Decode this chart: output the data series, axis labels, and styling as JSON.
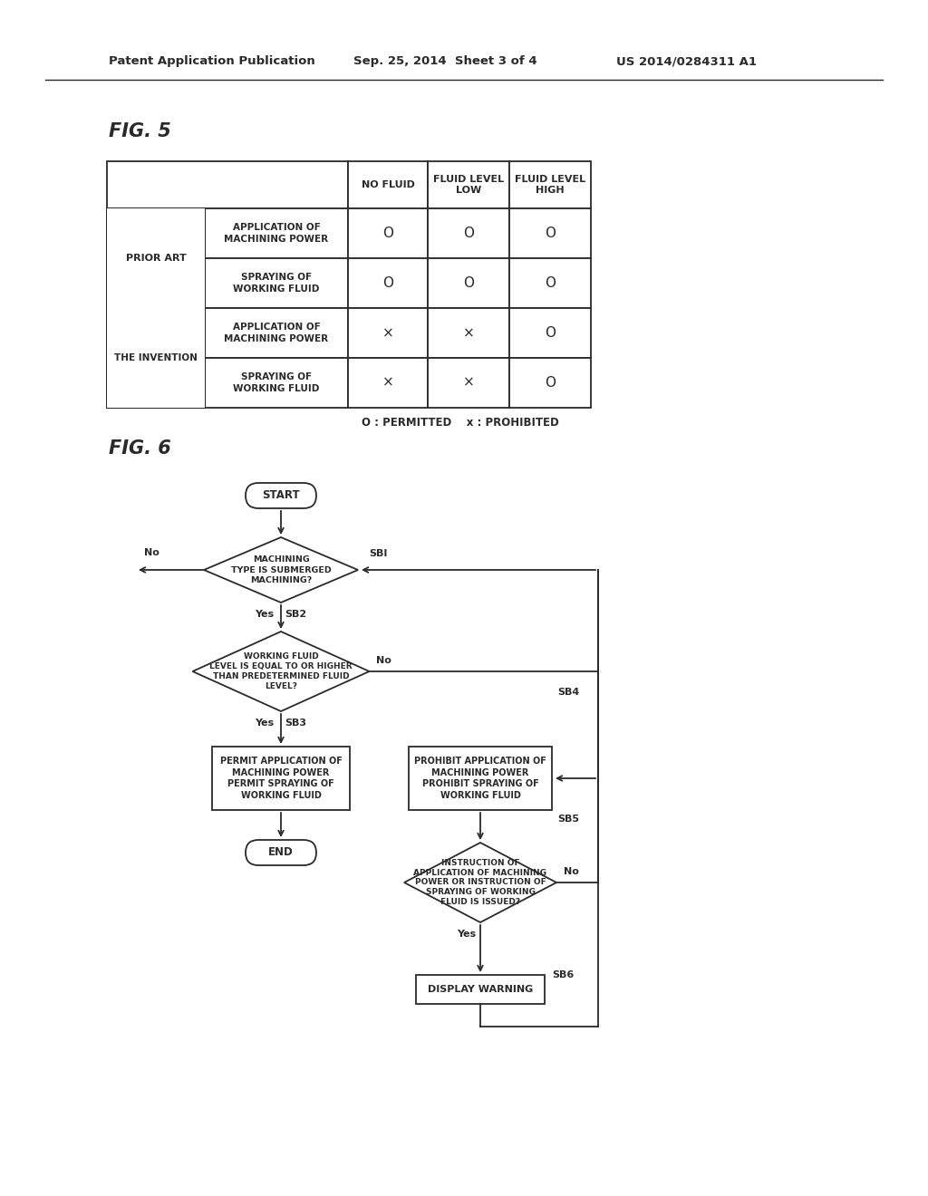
{
  "bg_color": "#ffffff",
  "header_text_left": "Patent Application Publication",
  "header_text_mid": "Sep. 25, 2014  Sheet 3 of 4",
  "header_text_right": "US 2014/0284311 A1",
  "fig5_label": "FIG. 5",
  "fig6_label": "FIG. 6",
  "table_legend": "O : PERMITTED    x : PROHIBITED",
  "flowchart_nodes": {
    "start": "START",
    "end": "END",
    "sb1_label": "MACHINING\nTYPE IS SUBMERGED\nMACHINING?",
    "sb1_tag": "SBI",
    "sb2_label": "WORKING FLUID\nLEVEL IS EQUAL TO OR HIGHER\nTHAN PREDETERMINED FLUID\nLEVEL?",
    "sb2_tag": "SB2",
    "sb3_label": "PERMIT APPLICATION OF\nMACHINING POWER\nPERMIT SPRAYING OF\nWORKING FLUID",
    "sb3_tag": "SB3",
    "sb4_label": "PROHIBIT APPLICATION OF\nMACHINING POWER\nPROHIBIT SPRAYING OF\nWORKING FLUID",
    "sb4_tag": "SB4",
    "sb5_label": "INSTRUCTION OF\nAPPLICATION OF MACHINING\nPOWER OR INSTRUCTION OF\nSPRAYING OF WORKING\nFLUID IS ISSUED?",
    "sb5_tag": "SB5",
    "sb6_label": "DISPLAY WARNING",
    "sb6_tag": "SB6"
  }
}
